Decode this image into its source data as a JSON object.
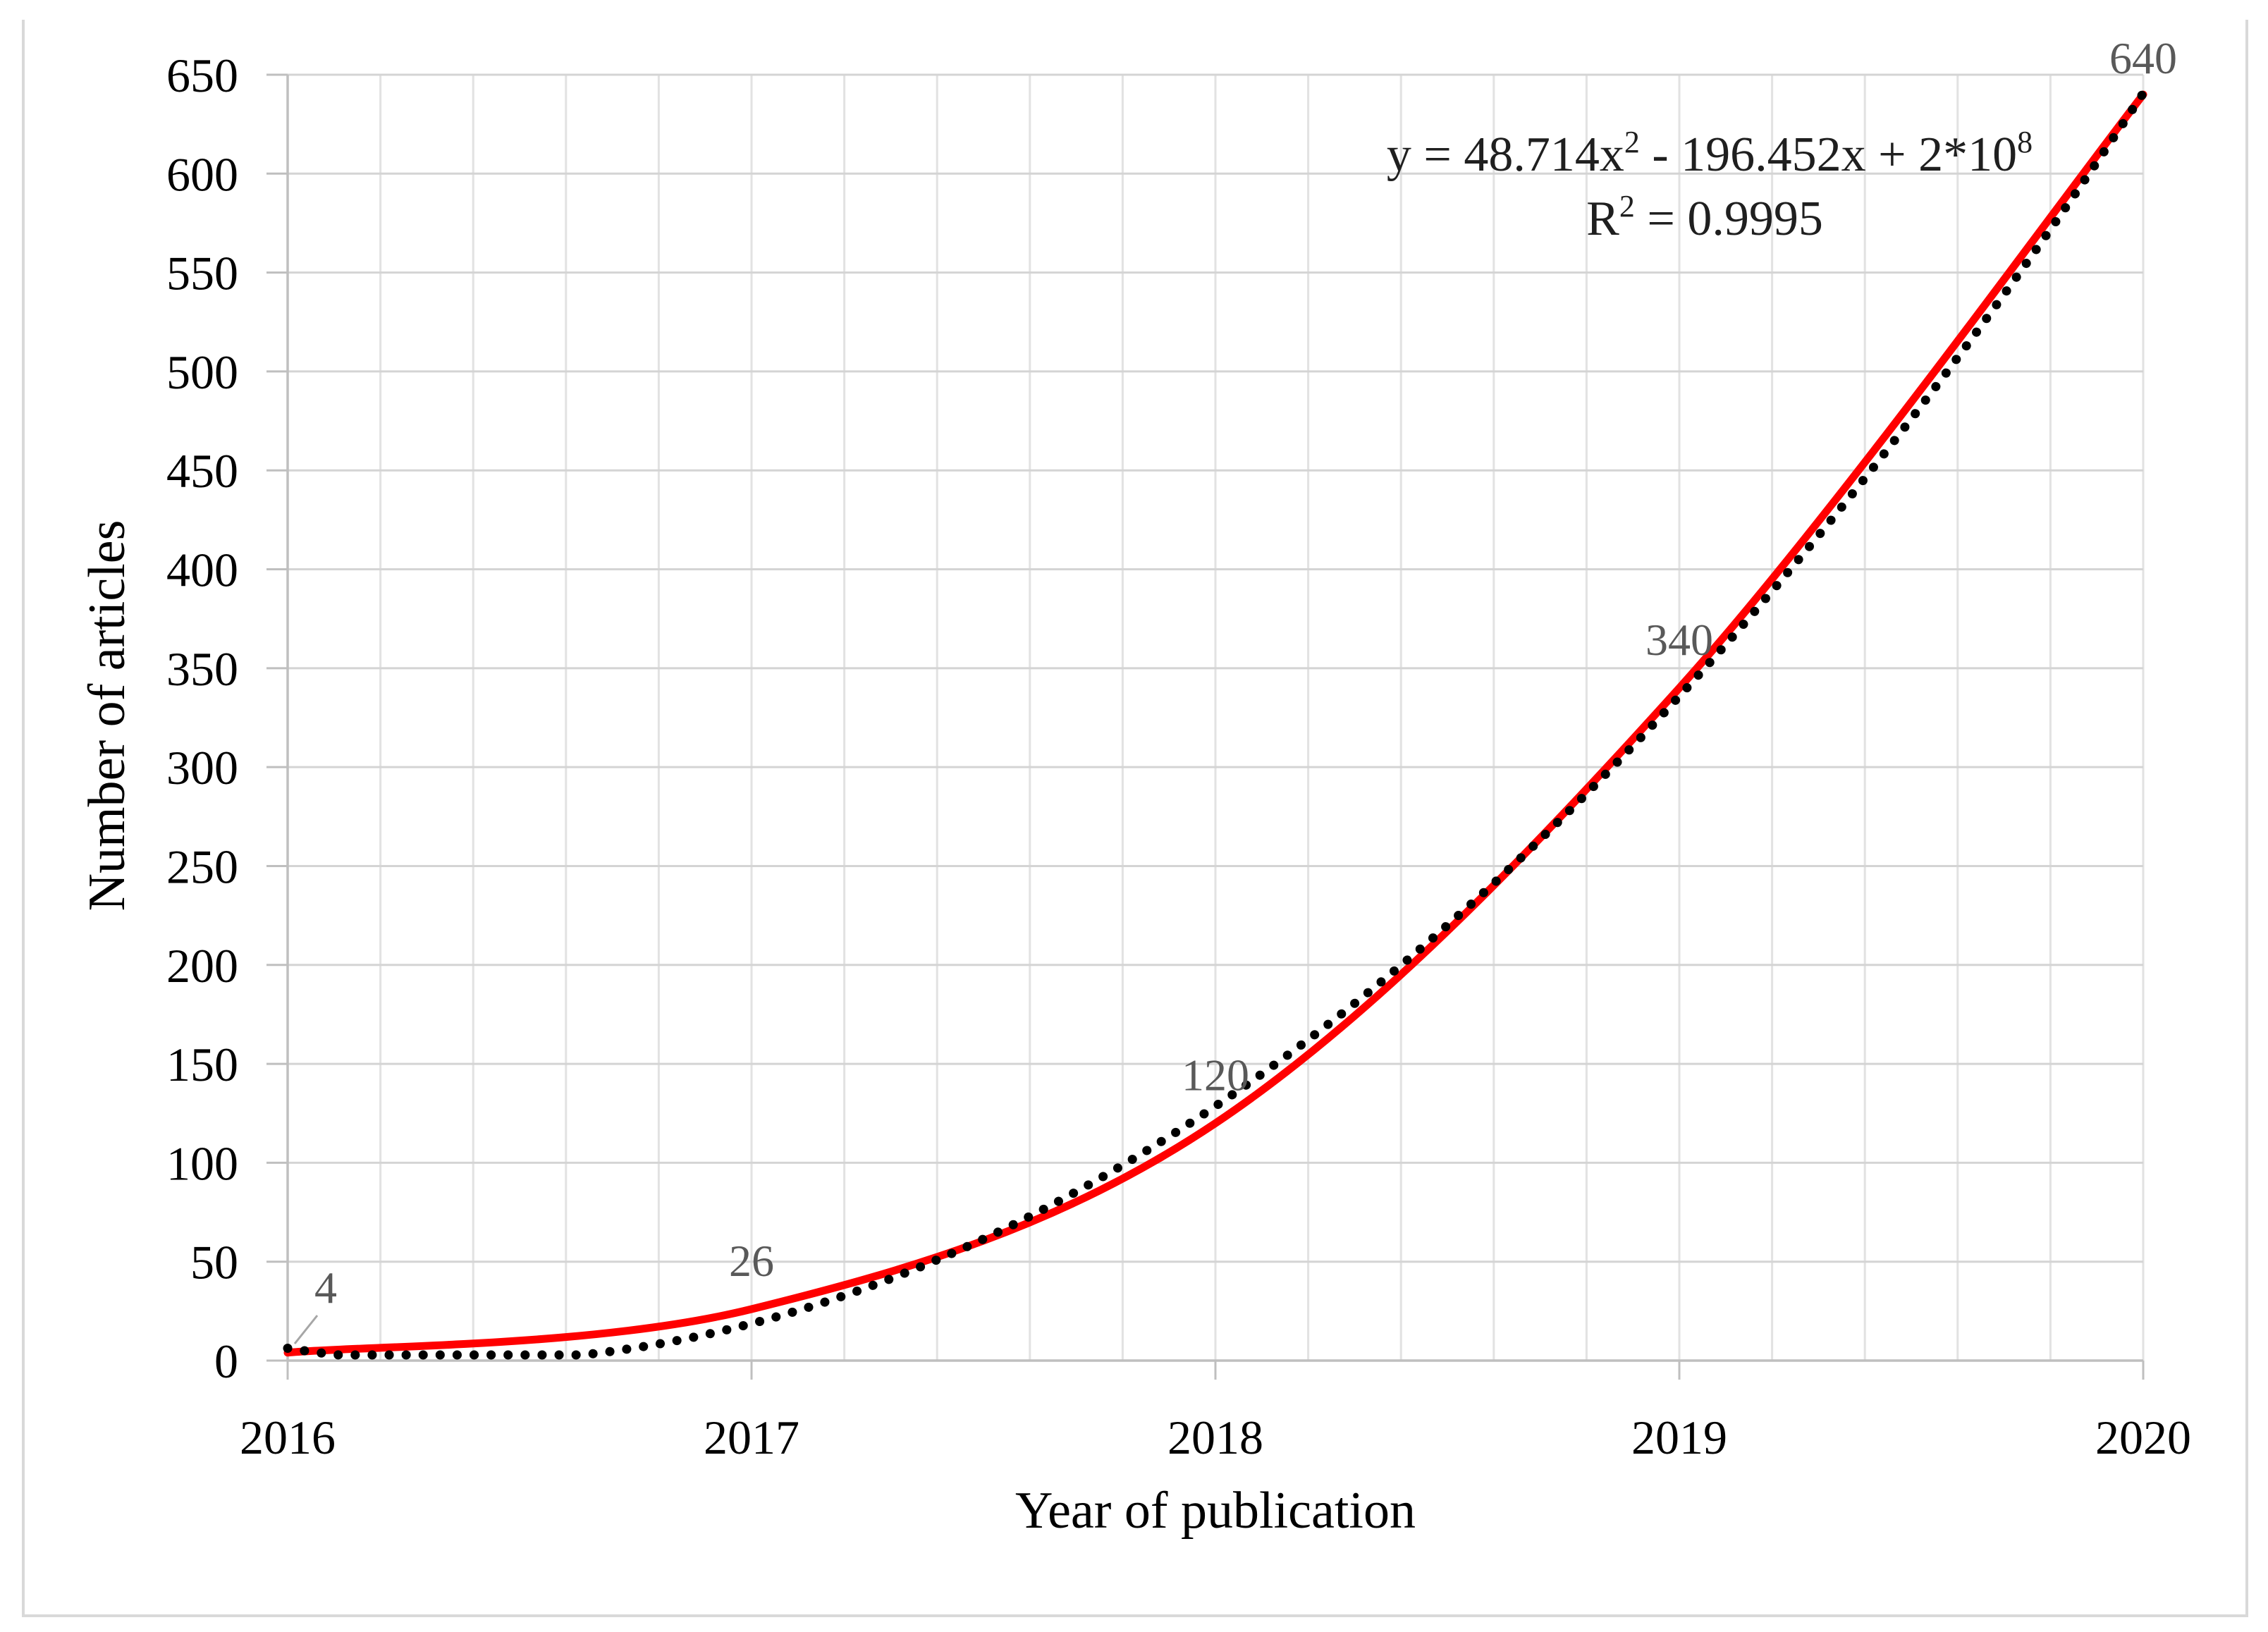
{
  "figure": {
    "background": "#FFFFFF",
    "border_color": "#D9D9D9"
  },
  "chart_data": {
    "type": "line",
    "title": "",
    "xlabel": "Year of publication",
    "ylabel": "Number of articles",
    "x": [
      2016,
      2017,
      2018,
      2019,
      2020
    ],
    "x_tick_labels": [
      "2016",
      "2017",
      "2018",
      "2019",
      "2020"
    ],
    "y_tick_labels": [
      "0",
      "50",
      "100",
      "150",
      "200",
      "250",
      "300",
      "350",
      "400",
      "450",
      "500",
      "550",
      "600",
      "650"
    ],
    "xlim": [
      2016,
      2020
    ],
    "ylim": [
      0,
      650
    ],
    "y_major_step": 50,
    "x_minor_divisions_per_year": 5,
    "grid": "both",
    "legend": "none",
    "series": [
      {
        "name": "Number of articles",
        "style": "smooth-solid",
        "color": "#FF0000",
        "values": [
          4,
          26,
          120,
          340,
          640
        ],
        "data_labels": [
          "4",
          "26",
          "120",
          "340",
          "640"
        ],
        "label_color": "#595959"
      },
      {
        "name": "Polynomial trendline (order 2)",
        "style": "dotted",
        "color": "#000000",
        "poly_vertex_form": {
          "a": 48.714,
          "b": 158.6,
          "c": 128.571,
          "t0": 2018
        }
      }
    ],
    "annotations": {
      "equation": {
        "text": "y = 48.714x² - 196.452x + 2*10⁸",
        "parts": [
          {
            "t": "y = 48.714x"
          },
          {
            "t": "2",
            "sup": true
          },
          {
            "t": " - 196.452x + 2*10"
          },
          {
            "t": "8",
            "sup": true
          }
        ],
        "color": "#1F1F1F"
      },
      "r_squared": {
        "text": "R² = 0.9995",
        "parts": [
          {
            "t": "R"
          },
          {
            "t": "2",
            "sup": true
          },
          {
            "t": " = 0.9995"
          }
        ],
        "color": "#1F1F1F"
      }
    }
  }
}
